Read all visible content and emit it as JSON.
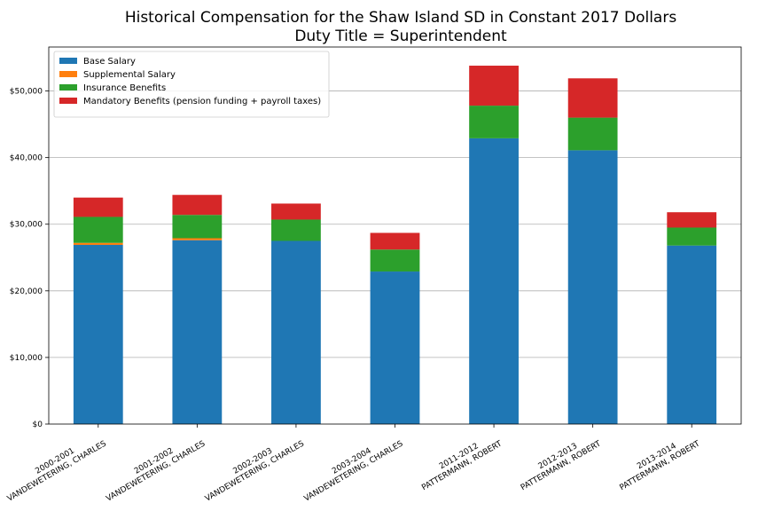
{
  "chart_data": {
    "type": "bar",
    "stacked": true,
    "title": "Historical Compensation for the Shaw Island SD in Constant 2017 Dollars",
    "subtitle": "Duty Title = Superintendent",
    "xlabel": "",
    "ylabel": "",
    "categories": [
      [
        "2000-2001",
        "VANDEWETERING, CHARLES"
      ],
      [
        "2001-2002",
        "VANDEWETERING, CHARLES"
      ],
      [
        "2002-2003",
        "VANDEWETERING, CHARLES"
      ],
      [
        "2003-2004",
        "VANDEWETERING, CHARLES"
      ],
      [
        "2011-2012",
        "PATTERMANN, ROBERT"
      ],
      [
        "2012-2013",
        "PATTERMANN, ROBERT"
      ],
      [
        "2013-2014",
        "PATTERMANN, ROBERT"
      ]
    ],
    "series": [
      {
        "name": "Base Salary",
        "color": "#1f77b4",
        "values": [
          26900,
          27600,
          27500,
          22900,
          42900,
          41100,
          26800
        ]
      },
      {
        "name": "Supplemental Salary",
        "color": "#ff7f0e",
        "values": [
          300,
          300,
          0,
          0,
          0,
          0,
          0
        ]
      },
      {
        "name": "Insurance Benefits",
        "color": "#2ca02c",
        "values": [
          3900,
          3500,
          3200,
          3300,
          4900,
          4900,
          2700
        ]
      },
      {
        "name": "Mandatory Benefits (pension funding + payroll taxes)",
        "color": "#d62728",
        "values": [
          2900,
          3000,
          2400,
          2500,
          6000,
          5900,
          2300
        ]
      }
    ],
    "ylim": [
      0,
      56600
    ],
    "yticks": [
      0,
      10000,
      20000,
      30000,
      40000,
      50000
    ],
    "ytick_labels": [
      "$0",
      "$10,000",
      "$20,000",
      "$30,000",
      "$40,000",
      "$50,000"
    ],
    "grid": "horizontal",
    "legend_position": "top-left"
  }
}
